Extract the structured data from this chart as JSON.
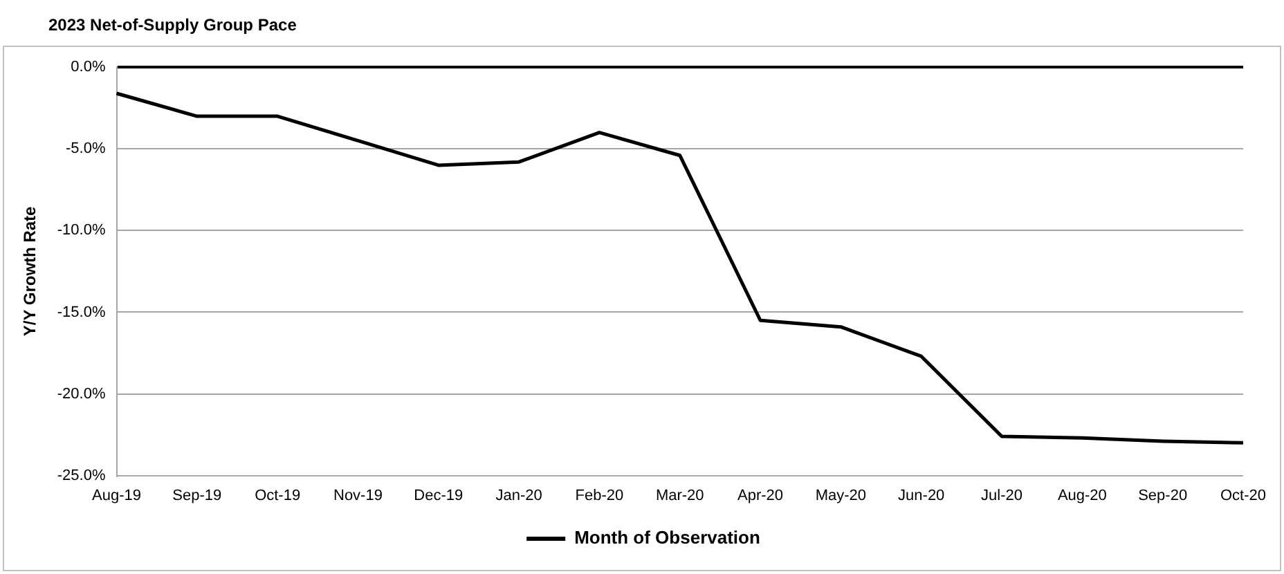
{
  "chart_data": {
    "type": "line",
    "title": "2023 Net-of-Supply Group Pace",
    "ylabel": "Y/Y Growth Rate",
    "categories": [
      "Aug-19",
      "Sep-19",
      "Oct-19",
      "Nov-19",
      "Dec-19",
      "Jan-20",
      "Feb-20",
      "Mar-20",
      "Apr-20",
      "May-20",
      "Jun-20",
      "Jul-20",
      "Aug-20",
      "Sep-20",
      "Oct-20"
    ],
    "series": [
      {
        "name": "Month of Observation",
        "color": "#000000",
        "values": [
          -1.6,
          -3.0,
          -3.0,
          -4.5,
          -6.0,
          -5.8,
          -4.0,
          -5.4,
          -15.5,
          -15.9,
          -17.7,
          -22.6,
          -22.7,
          -22.9,
          -23.0
        ]
      }
    ],
    "ylim": [
      -25,
      0
    ],
    "yticks": [
      {
        "value": 0,
        "label": "0.0%"
      },
      {
        "value": -5,
        "label": "-5.0%"
      },
      {
        "value": -10,
        "label": "-10.0%"
      },
      {
        "value": -15,
        "label": "-15.0%"
      },
      {
        "value": -20,
        "label": "-20.0%"
      },
      {
        "value": -25,
        "label": "-25.0%"
      }
    ],
    "grid": "y",
    "legend": "bottom",
    "marker": "none",
    "line_style": "solid"
  }
}
